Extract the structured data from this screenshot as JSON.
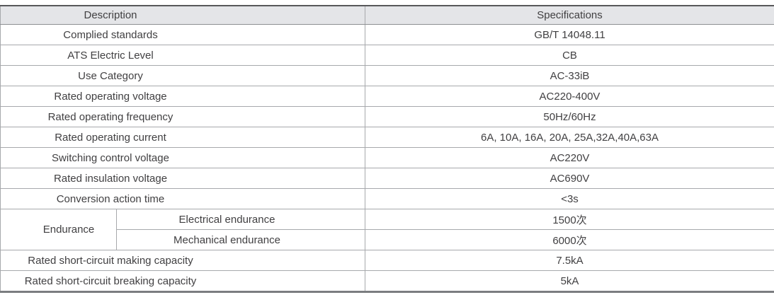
{
  "spec_table": {
    "columns": {
      "description": "Description",
      "specifications": "Specifications"
    },
    "rows": [
      {
        "label": "Complied standards",
        "value": "GB/T 14048.11"
      },
      {
        "label": "ATS Electric Level",
        "value": "CB"
      },
      {
        "label": "Use Category",
        "value": "AC-33iB"
      },
      {
        "label": "Rated operating voltage",
        "value": "AC220-400V"
      },
      {
        "label": "Rated operating frequency",
        "value": "50Hz/60Hz"
      },
      {
        "label": "Rated operating current",
        "value": "6A, 10A, 16A, 20A, 25A,32A,40A,63A"
      },
      {
        "label": "Switching control voltage",
        "value": "AC220V"
      },
      {
        "label": "Rated insulation voltage",
        "value": "AC690V"
      },
      {
        "label": "Conversion action time",
        "value": "<3s"
      }
    ],
    "endurance": {
      "label": "Endurance",
      "sub_rows": [
        {
          "label": "Electrical endurance",
          "value": "1500次"
        },
        {
          "label": "Mechanical endurance",
          "value": "6000次"
        }
      ]
    },
    "bottom_rows": [
      {
        "label": "Rated short-circuit making capacity",
        "value": "7.5kA"
      },
      {
        "label": "Rated short-circuit breaking capacity",
        "value": "5kA"
      }
    ],
    "colors": {
      "header_background": "#e4e5e8",
      "border_heavy": "#57585a",
      "border_light": "#a7a9ac",
      "text": "#414042"
    }
  }
}
